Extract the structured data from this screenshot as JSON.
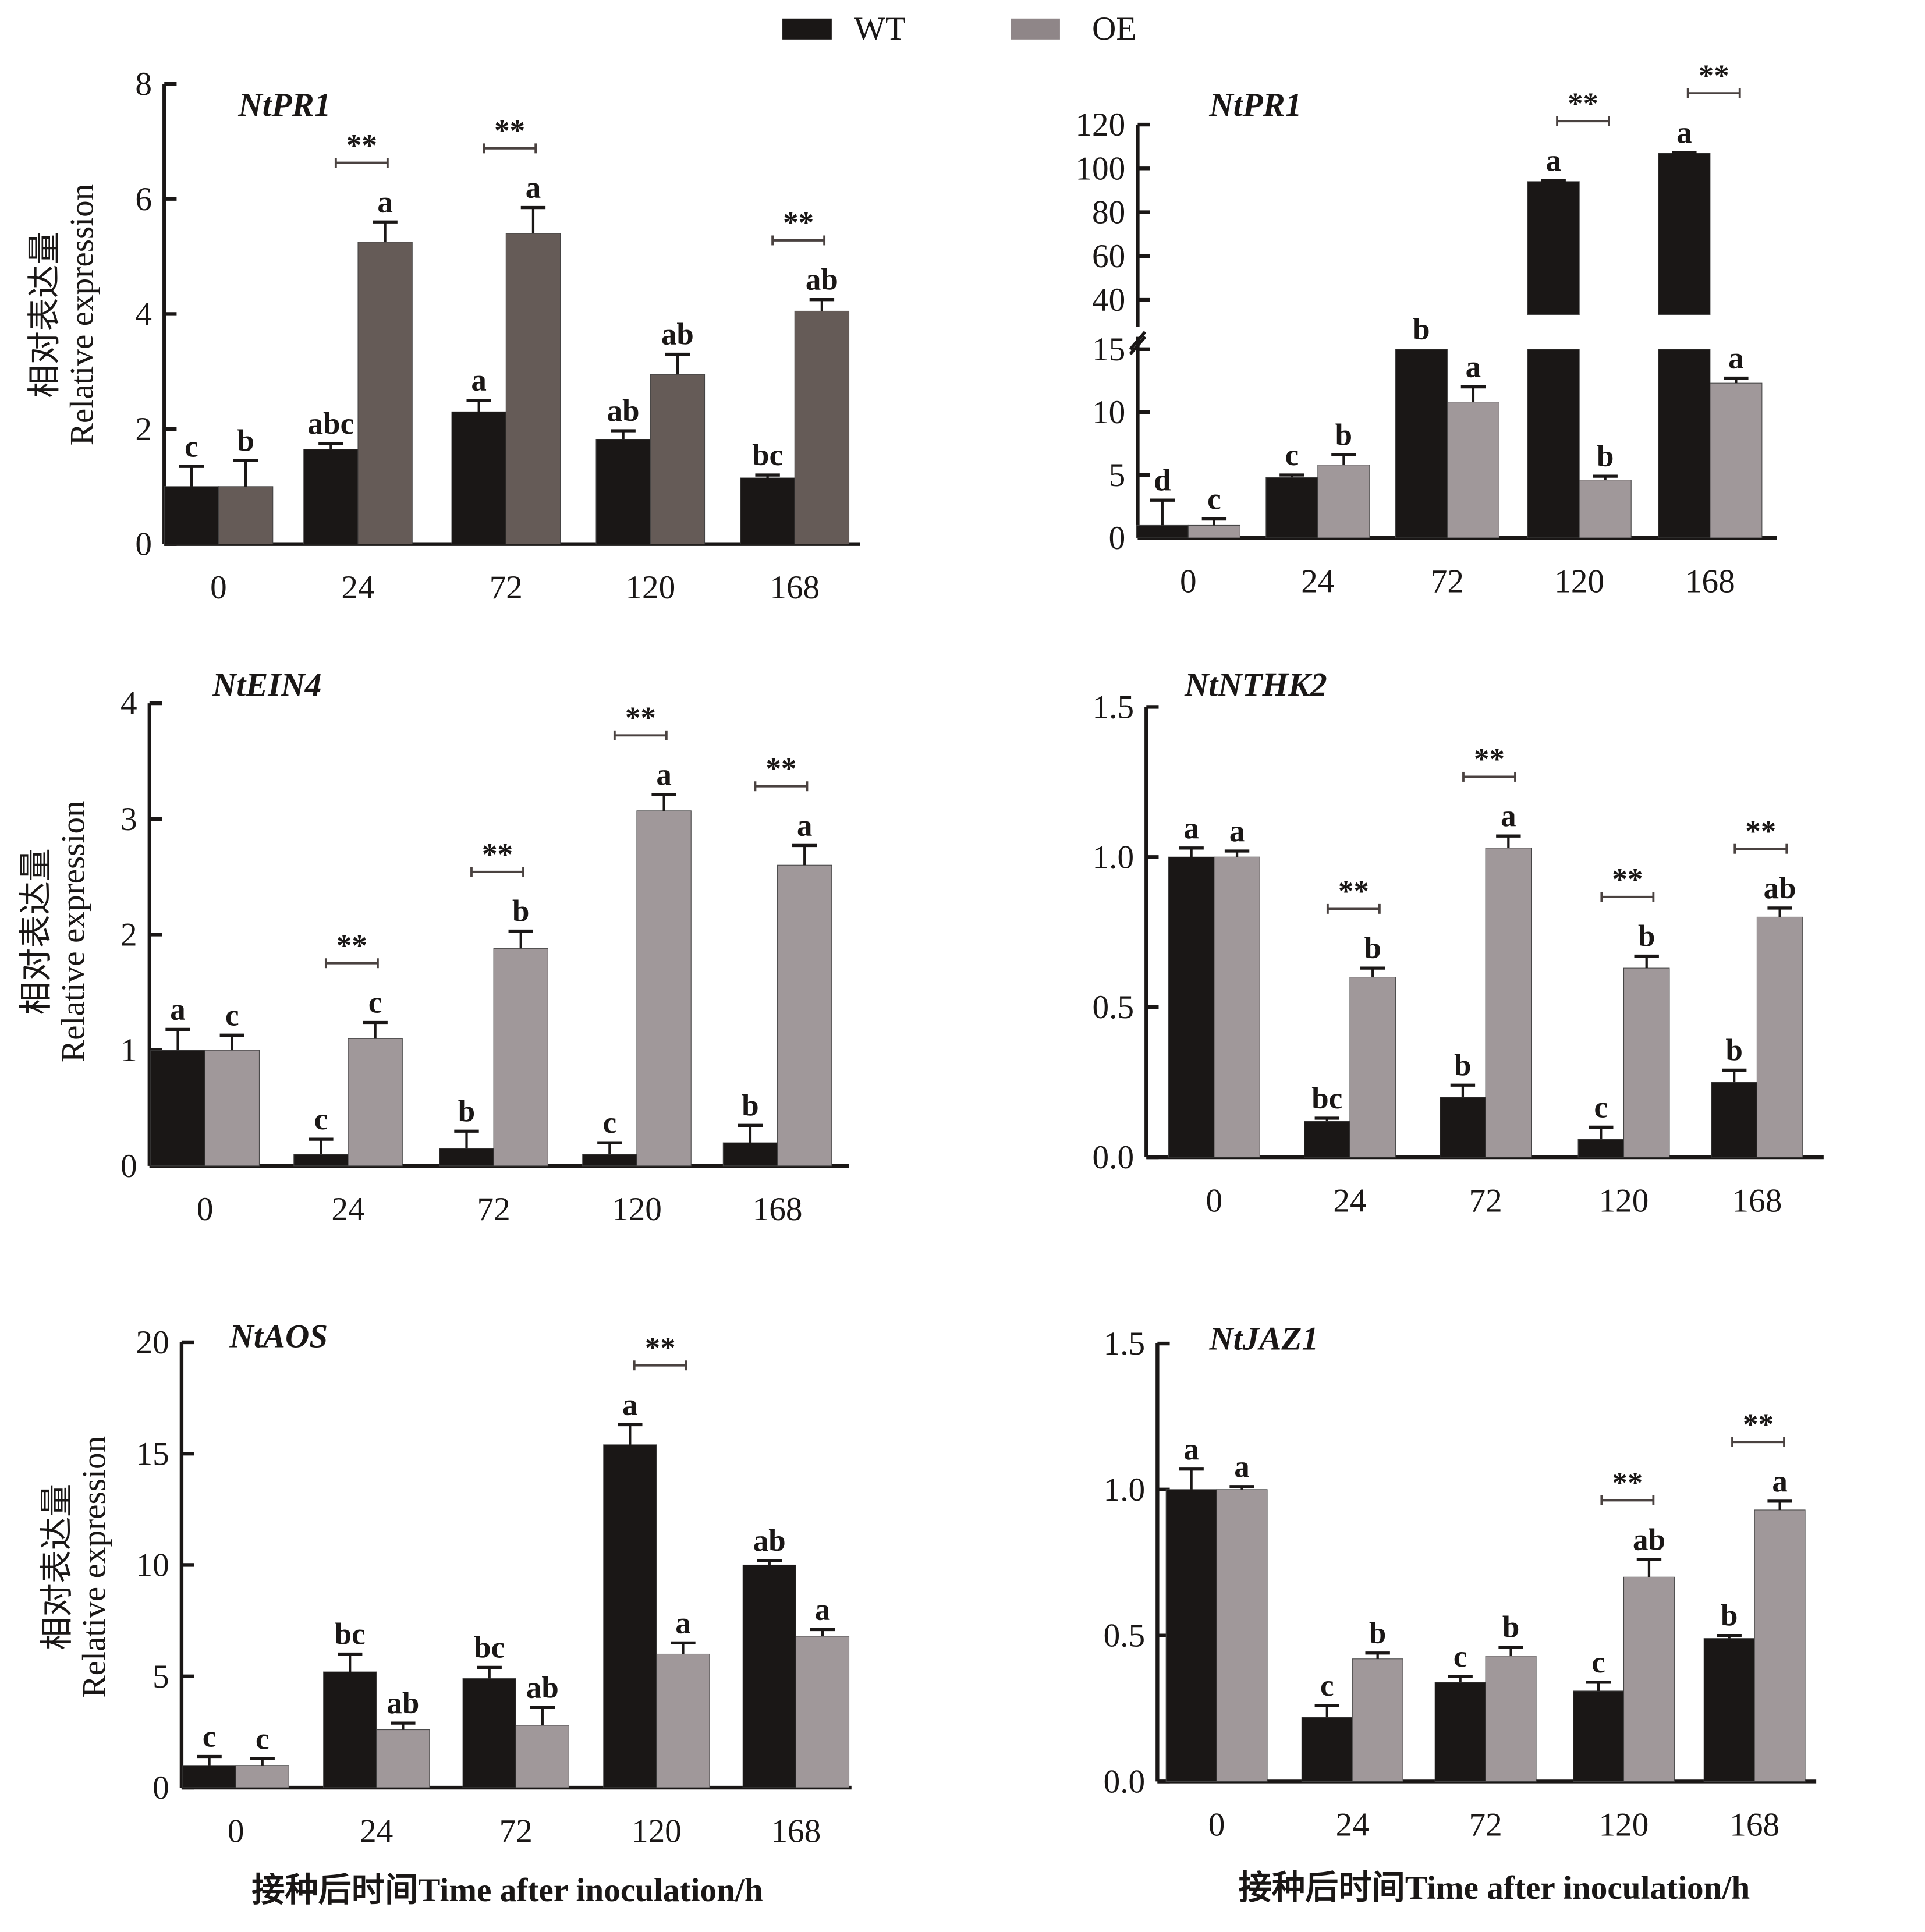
{
  "legend": {
    "items": [
      {
        "label": "WT",
        "color": "#1a1716"
      },
      {
        "label": "OE",
        "color": "#8f8688"
      }
    ]
  },
  "y_label_cn": "相对表达量",
  "y_label_en": "Relative expression",
  "x_label": "接种后时间Time after inoculation/h",
  "chart_data": [
    {
      "type": "bar",
      "title": "NtPR1",
      "categories": [
        "0",
        "24",
        "72",
        "120",
        "168"
      ],
      "ylim": [
        0,
        8
      ],
      "yticks": [
        "0",
        "2",
        "4",
        "6",
        "8"
      ],
      "oe_color": "#655b57",
      "series": [
        {
          "name": "WT",
          "values": [
            1.0,
            1.65,
            2.3,
            1.82,
            1.15
          ],
          "errors": [
            0.35,
            0.1,
            0.2,
            0.15,
            0.05
          ],
          "letters": [
            "c",
            "abc",
            "a",
            "ab",
            "bc"
          ]
        },
        {
          "name": "OE",
          "values": [
            1.0,
            5.25,
            5.4,
            2.95,
            4.05
          ],
          "errors": [
            0.45,
            0.35,
            0.45,
            0.35,
            0.2
          ],
          "letters": [
            "b",
            "a",
            "a",
            "ab",
            "ab"
          ]
        }
      ],
      "significance": [
        "",
        "**",
        "**",
        "",
        "**"
      ]
    },
    {
      "type": "bar",
      "title": "NtPR1",
      "categories": [
        "0",
        "24",
        "72",
        "120",
        "168"
      ],
      "ylim": [
        0,
        120
      ],
      "axis_break": [
        15,
        40
      ],
      "yticks": [
        "0",
        "5",
        "10",
        "15",
        "40",
        "60",
        "80",
        "100",
        "120"
      ],
      "oe_color": "#a0989a",
      "series": [
        {
          "name": "WT",
          "values": [
            1.0,
            4.8,
            15,
            94,
            107
          ],
          "errors": [
            2.0,
            0.2,
            0,
            0.5,
            0.3
          ],
          "letters": [
            "d",
            "c",
            "b",
            "a",
            "a"
          ]
        },
        {
          "name": "OE",
          "values": [
            1.0,
            5.8,
            10.8,
            4.6,
            12.3
          ],
          "errors": [
            0.5,
            0.8,
            1.2,
            0.3,
            0.4
          ],
          "letters": [
            "c",
            "b",
            "a",
            "b",
            "a"
          ]
        }
      ],
      "significance": [
        "",
        "",
        "",
        "**",
        "**"
      ]
    },
    {
      "type": "bar",
      "title": "NtEIN4",
      "categories": [
        "0",
        "24",
        "72",
        "120",
        "168"
      ],
      "ylim": [
        0,
        4
      ],
      "yticks": [
        "0",
        "1",
        "2",
        "3",
        "4"
      ],
      "oe_color": "#a0989a",
      "series": [
        {
          "name": "WT",
          "values": [
            1.0,
            0.1,
            0.15,
            0.1,
            0.2
          ],
          "errors": [
            0.18,
            0.13,
            0.15,
            0.1,
            0.15
          ],
          "letters": [
            "a",
            "c",
            "b",
            "c",
            "b"
          ]
        },
        {
          "name": "OE",
          "values": [
            1.0,
            1.1,
            1.88,
            3.07,
            2.6
          ],
          "errors": [
            0.13,
            0.14,
            0.15,
            0.14,
            0.17
          ],
          "letters": [
            "c",
            "c",
            "b",
            "a",
            "a"
          ]
        }
      ],
      "significance": [
        "",
        "**",
        "**",
        "**",
        "**"
      ]
    },
    {
      "type": "bar",
      "title": "NtNTHK2",
      "categories": [
        "0",
        "24",
        "72",
        "120",
        "168"
      ],
      "ylim": [
        0,
        1.5
      ],
      "yticks": [
        "0.0",
        "0.5",
        "1.0",
        "1.5"
      ],
      "oe_color": "#a0989a",
      "series": [
        {
          "name": "WT",
          "values": [
            1.0,
            0.12,
            0.2,
            0.06,
            0.25
          ],
          "errors": [
            0.03,
            0.01,
            0.04,
            0.04,
            0.04
          ],
          "letters": [
            "a",
            "bc",
            "b",
            "c",
            "b"
          ]
        },
        {
          "name": "OE",
          "values": [
            1.0,
            0.6,
            1.03,
            0.63,
            0.8
          ],
          "errors": [
            0.02,
            0.03,
            0.04,
            0.04,
            0.03
          ],
          "letters": [
            "a",
            "b",
            "a",
            "b",
            "ab"
          ]
        }
      ],
      "significance": [
        "",
        "**",
        "**",
        "**",
        "**"
      ]
    },
    {
      "type": "bar",
      "title": "NtAOS",
      "categories": [
        "0",
        "24",
        "72",
        "120",
        "168"
      ],
      "ylim": [
        0,
        20
      ],
      "yticks": [
        "0",
        "5",
        "10",
        "15",
        "20"
      ],
      "oe_color": "#a0989a",
      "series": [
        {
          "name": "WT",
          "values": [
            1.0,
            5.2,
            4.9,
            15.4,
            10.0
          ],
          "errors": [
            0.4,
            0.8,
            0.5,
            0.9,
            0.2
          ],
          "letters": [
            "c",
            "bc",
            "bc",
            "a",
            "ab"
          ]
        },
        {
          "name": "OE",
          "values": [
            1.0,
            2.6,
            2.8,
            6.0,
            6.8
          ],
          "errors": [
            0.3,
            0.3,
            0.8,
            0.5,
            0.3
          ],
          "letters": [
            "c",
            "ab",
            "ab",
            "a",
            "a"
          ]
        }
      ],
      "significance": [
        "",
        "",
        "",
        "**",
        ""
      ]
    },
    {
      "type": "bar",
      "title": "NtJAZ1",
      "categories": [
        "0",
        "24",
        "72",
        "120",
        "168"
      ],
      "ylim": [
        0,
        1.5
      ],
      "yticks": [
        "0.0",
        "0.5",
        "1.0",
        "1.5"
      ],
      "oe_color": "#a0989a",
      "series": [
        {
          "name": "WT",
          "values": [
            1.0,
            0.22,
            0.34,
            0.31,
            0.49
          ],
          "errors": [
            0.07,
            0.04,
            0.02,
            0.03,
            0.01
          ],
          "letters": [
            "a",
            "c",
            "c",
            "c",
            "b"
          ]
        },
        {
          "name": "OE",
          "values": [
            1.0,
            0.42,
            0.43,
            0.7,
            0.93
          ],
          "errors": [
            0.01,
            0.02,
            0.03,
            0.06,
            0.03
          ],
          "letters": [
            "a",
            "b",
            "b",
            "ab",
            "a"
          ]
        }
      ],
      "significance": [
        "",
        "",
        "",
        "**",
        "**"
      ]
    }
  ]
}
